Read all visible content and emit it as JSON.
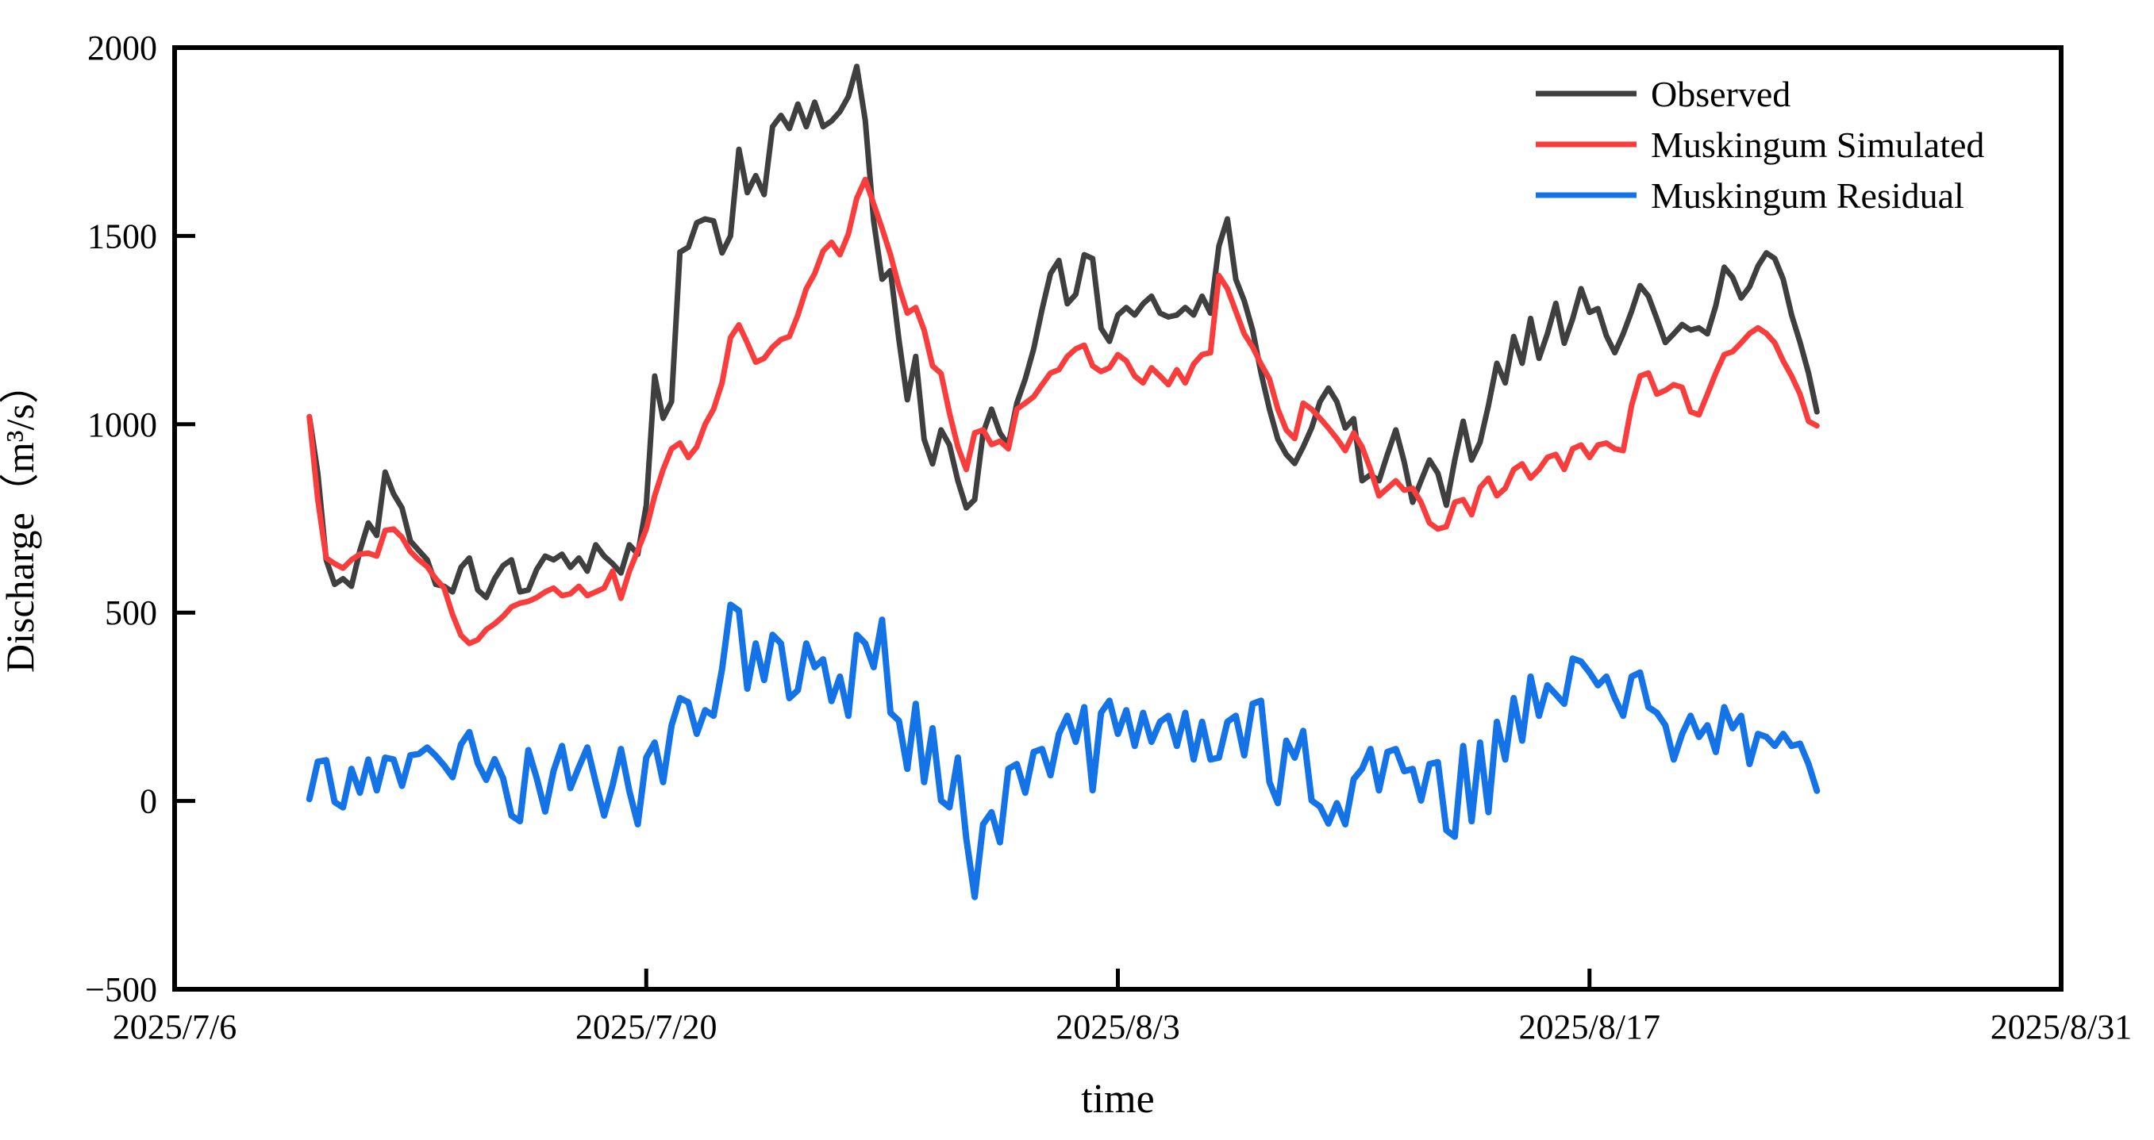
{
  "figure": {
    "title": "",
    "x_axis_title": "time",
    "y_axis_title": "Discharge（m³/s）"
  },
  "chart_data": {
    "type": "line",
    "title": "",
    "xlabel": "time",
    "ylabel": "Discharge（m³/s）",
    "grid": false,
    "legend_position": "upper right",
    "x_axis": {
      "min_day": 0,
      "max_day": 56,
      "origin_date": "2025/7/6",
      "tick_days": [
        0,
        14,
        28,
        42,
        56
      ],
      "tick_labels": [
        "2025/7/6",
        "2025/7/20",
        "2025/8/3",
        "2025/8/17",
        "2025/8/31"
      ]
    },
    "y_axis": {
      "min": -500,
      "max": 2000,
      "tick_values": [
        2000,
        1500,
        1000,
        500,
        0,
        -500
      ],
      "tick_labels": [
        "2000",
        "1500",
        "1000",
        "500",
        "0",
        "−500"
      ]
    },
    "sampling": {
      "start_day": 4.0,
      "step_days": 0.25,
      "points_per_series": 180,
      "note": "values in m3/s; day offsets measured from 2025/7/6"
    },
    "series": [
      {
        "name": "Observed",
        "color": "#3f3f3f",
        "line_width": 7,
        "values": [
          1020,
          870,
          640,
          575,
          590,
          570,
          665,
          738,
          705,
          873,
          815,
          778,
          690,
          665,
          640,
          575,
          570,
          555,
          620,
          645,
          560,
          540,
          590,
          625,
          640,
          555,
          560,
          615,
          650,
          640,
          655,
          620,
          645,
          610,
          680,
          650,
          630,
          605,
          680,
          655,
          785,
          1128,
          1016,
          1060,
          1457,
          1470,
          1535,
          1545,
          1540,
          1455,
          1500,
          1730,
          1615,
          1660,
          1610,
          1790,
          1820,
          1785,
          1850,
          1790,
          1855,
          1790,
          1805,
          1830,
          1870,
          1950,
          1807,
          1540,
          1385,
          1408,
          1225,
          1065,
          1180,
          960,
          895,
          985,
          945,
          850,
          778,
          800,
          977,
          1040,
          977,
          945,
          1056,
          1120,
          1200,
          1305,
          1400,
          1435,
          1320,
          1345,
          1450,
          1440,
          1255,
          1220,
          1290,
          1310,
          1290,
          1320,
          1340,
          1295,
          1285,
          1290,
          1310,
          1290,
          1340,
          1295,
          1473,
          1545,
          1385,
          1328,
          1250,
          1136,
          1040,
          960,
          920,
          896,
          940,
          990,
          1060,
          1096,
          1060,
          990,
          1015,
          850,
          866,
          850,
          920,
          985,
          900,
          793,
          850,
          905,
          870,
          785,
          905,
          1008,
          905,
          952,
          1050,
          1162,
          1110,
          1233,
          1162,
          1281,
          1175,
          1240,
          1321,
          1215,
          1280,
          1360,
          1297,
          1307,
          1235,
          1190,
          1240,
          1300,
          1368,
          1340,
          1280,
          1217,
          1240,
          1265,
          1250,
          1256,
          1240,
          1315,
          1417,
          1390,
          1335,
          1365,
          1420,
          1455,
          1440,
          1385,
          1290,
          1218,
          1136,
          1033
        ]
      },
      {
        "name": "Muskingum Simulated",
        "color": "#f93c3c",
        "line_width": 7,
        "values": [
          1020,
          800,
          645,
          630,
          618,
          640,
          655,
          658,
          650,
          718,
          722,
          700,
          662,
          640,
          622,
          590,
          565,
          495,
          440,
          418,
          428,
          455,
          470,
          490,
          515,
          525,
          530,
          540,
          555,
          565,
          545,
          550,
          570,
          545,
          555,
          565,
          610,
          538,
          610,
          665,
          722,
          810,
          880,
          935,
          950,
          912,
          940,
          1000,
          1040,
          1110,
          1230,
          1264,
          1216,
          1165,
          1175,
          1205,
          1225,
          1233,
          1290,
          1360,
          1400,
          1460,
          1483,
          1450,
          1505,
          1600,
          1650,
          1585,
          1520,
          1450,
          1365,
          1295,
          1310,
          1250,
          1155,
          1135,
          1030,
          940,
          880,
          977,
          985,
          946,
          955,
          935,
          1040,
          1056,
          1073,
          1105,
          1136,
          1145,
          1180,
          1200,
          1210,
          1155,
          1140,
          1150,
          1185,
          1168,
          1128,
          1110,
          1150,
          1128,
          1105,
          1145,
          1110,
          1160,
          1185,
          1190,
          1395,
          1360,
          1300,
          1240,
          1205,
          1160,
          1120,
          1040,
          985,
          962,
          1056,
          1040,
          1016,
          990,
          962,
          930,
          977,
          940,
          880,
          810,
          830,
          850,
          825,
          830,
          793,
          738,
          722,
          728,
          793,
          800,
          760,
          832,
          857,
          810,
          830,
          880,
          895,
          857,
          880,
          912,
          920,
          880,
          935,
          945,
          912,
          945,
          950,
          935,
          930,
          1050,
          1128,
          1136,
          1080,
          1090,
          1105,
          1098,
          1033,
          1025,
          1080,
          1136,
          1185,
          1193,
          1216,
          1241,
          1256,
          1241,
          1216,
          1168,
          1128,
          1080,
          1008,
          996
        ]
      },
      {
        "name": "Muskingum Residual",
        "color": "#1473e6",
        "line_width": 8,
        "values": [
          5,
          104,
          108,
          -3,
          -17,
          85,
          22,
          110,
          28,
          115,
          110,
          40,
          121,
          125,
          142,
          120,
          94,
          63,
          150,
          183,
          100,
          56,
          111,
          60,
          -39,
          -54,
          135,
          60,
          -28,
          80,
          146,
          34,
          90,
          142,
          50,
          -39,
          41,
          138,
          26,
          -62,
          115,
          155,
          50,
          200,
          273,
          262,
          178,
          241,
          226,
          350,
          521,
          505,
          298,
          418,
          321,
          441,
          418,
          273,
          294,
          418,
          355,
          376,
          265,
          330,
          226,
          441,
          418,
          355,
          481,
          234,
          213,
          85,
          258,
          50,
          193,
          1,
          -17,
          115,
          -100,
          -255,
          -62,
          -30,
          -110,
          85,
          98,
          22,
          130,
          138,
          68,
          178,
          226,
          157,
          249,
          28,
          234,
          266,
          178,
          241,
          146,
          234,
          157,
          210,
          226,
          146,
          234,
          110,
          210,
          110,
          115,
          210,
          226,
          121,
          258,
          266,
          50,
          -6,
          160,
          115,
          186,
          1,
          -15,
          -60,
          -6,
          -62,
          58,
          85,
          138,
          28,
          130,
          138,
          79,
          85,
          1,
          98,
          103,
          -78,
          -95,
          146,
          -54,
          155,
          -30,
          210,
          110,
          273,
          160,
          330,
          226,
          307,
          283,
          258,
          378,
          370,
          341,
          307,
          330,
          273,
          226,
          330,
          341,
          249,
          234,
          201,
          110,
          178,
          226,
          170,
          201,
          130,
          249,
          193,
          226,
          98,
          178,
          170,
          146,
          178,
          146,
          152,
          98,
          27
        ]
      }
    ]
  }
}
